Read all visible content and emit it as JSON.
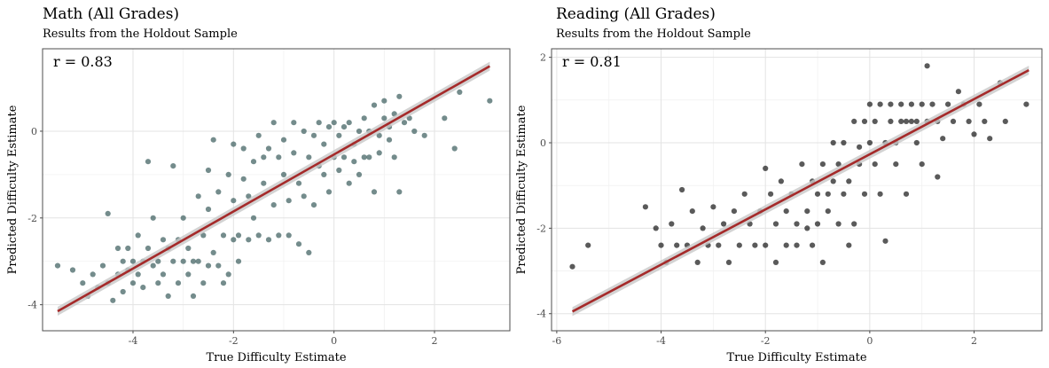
{
  "chart_data": [
    {
      "type": "scatter",
      "title": "Math (All Grades)",
      "subtitle": "Results from the Holdout Sample",
      "xlabel": "True Difficulty Estimate",
      "ylabel": "Predicted Difficulty Estimate",
      "annotation": "r = 0.83",
      "xlim": [
        -5.8,
        3.5
      ],
      "ylim": [
        -4.6,
        1.9
      ],
      "xticks": [
        -4,
        -2,
        0,
        2
      ],
      "yticks": [
        -4,
        -2,
        0
      ],
      "xtick_labels": [
        "-4",
        "-2",
        "0",
        "2"
      ],
      "ytick_labels": [
        "-4",
        "-2",
        "0"
      ],
      "grid": true,
      "point_color": "#3f5f5f",
      "fit_color": "#a52a2a",
      "band_color": "#c8c8c8",
      "fit_line": {
        "x": [
          -5.5,
          3.1
        ],
        "y": [
          -4.15,
          1.5
        ]
      },
      "points": [
        [
          -5.5,
          -3.1
        ],
        [
          -5.2,
          -3.2
        ],
        [
          -5.0,
          -3.5
        ],
        [
          -4.9,
          -3.8
        ],
        [
          -4.8,
          -3.3
        ],
        [
          -4.7,
          -3.6
        ],
        [
          -4.6,
          -3.1
        ],
        [
          -4.5,
          -1.9
        ],
        [
          -4.5,
          -3.5
        ],
        [
          -4.4,
          -3.9
        ],
        [
          -4.3,
          -3.3
        ],
        [
          -4.3,
          -2.7
        ],
        [
          -4.2,
          -3.0
        ],
        [
          -4.2,
          -3.7
        ],
        [
          -4.1,
          -3.2
        ],
        [
          -4.1,
          -2.7
        ],
        [
          -4.0,
          -3.5
        ],
        [
          -4.0,
          -3.0
        ],
        [
          -3.9,
          -2.4
        ],
        [
          -3.9,
          -3.3
        ],
        [
          -3.8,
          -3.0
        ],
        [
          -3.8,
          -3.6
        ],
        [
          -3.7,
          -0.7
        ],
        [
          -3.7,
          -2.7
        ],
        [
          -3.6,
          -3.1
        ],
        [
          -3.6,
          -2.0
        ],
        [
          -3.5,
          -3.5
        ],
        [
          -3.5,
          -3.0
        ],
        [
          -3.4,
          -2.5
        ],
        [
          -3.4,
          -3.3
        ],
        [
          -3.3,
          -3.8
        ],
        [
          -3.3,
          -2.7
        ],
        [
          -3.2,
          -3.0
        ],
        [
          -3.2,
          -0.8
        ],
        [
          -3.1,
          -2.5
        ],
        [
          -3.1,
          -3.5
        ],
        [
          -3.0,
          -3.0
        ],
        [
          -3.0,
          -2.0
        ],
        [
          -2.9,
          -3.3
        ],
        [
          -2.9,
          -2.7
        ],
        [
          -2.8,
          -3.0
        ],
        [
          -2.8,
          -3.8
        ],
        [
          -2.7,
          -1.5
        ],
        [
          -2.7,
          -3.0
        ],
        [
          -2.6,
          -2.4
        ],
        [
          -2.6,
          -3.5
        ],
        [
          -2.5,
          -0.9
        ],
        [
          -2.5,
          -3.1
        ],
        [
          -2.5,
          -1.8
        ],
        [
          -2.4,
          -2.8
        ],
        [
          -2.4,
          -0.2
        ],
        [
          -2.3,
          -3.1
        ],
        [
          -2.3,
          -1.4
        ],
        [
          -2.2,
          -3.5
        ],
        [
          -2.2,
          -2.4
        ],
        [
          -2.1,
          -1.0
        ],
        [
          -2.1,
          -3.3
        ],
        [
          -2.0,
          -0.3
        ],
        [
          -2.0,
          -2.5
        ],
        [
          -2.0,
          -1.6
        ],
        [
          -1.9,
          -3.0
        ],
        [
          -1.9,
          -2.4
        ],
        [
          -1.8,
          -1.1
        ],
        [
          -1.8,
          -0.4
        ],
        [
          -1.7,
          -2.5
        ],
        [
          -1.7,
          -1.5
        ],
        [
          -1.6,
          -0.7
        ],
        [
          -1.6,
          -2.0
        ],
        [
          -1.5,
          -0.1
        ],
        [
          -1.5,
          -2.4
        ],
        [
          -1.4,
          -0.6
        ],
        [
          -1.4,
          -1.2
        ],
        [
          -1.3,
          -2.5
        ],
        [
          -1.3,
          -0.4
        ],
        [
          -1.2,
          -1.7
        ],
        [
          -1.2,
          0.2
        ],
        [
          -1.1,
          -0.6
        ],
        [
          -1.1,
          -2.4
        ],
        [
          -1.0,
          -1.0
        ],
        [
          -1.0,
          -0.2
        ],
        [
          -0.9,
          -1.6
        ],
        [
          -0.9,
          -2.4
        ],
        [
          -0.8,
          0.2
        ],
        [
          -0.8,
          -0.5
        ],
        [
          -0.7,
          -1.2
        ],
        [
          -0.7,
          -2.6
        ],
        [
          -0.6,
          0.0
        ],
        [
          -0.6,
          -1.5
        ],
        [
          -0.5,
          -0.6
        ],
        [
          -0.5,
          -2.8
        ],
        [
          -0.4,
          -0.1
        ],
        [
          -0.4,
          -1.7
        ],
        [
          -0.3,
          -0.8
        ],
        [
          -0.3,
          0.2
        ],
        [
          -0.2,
          -1.0
        ],
        [
          -0.2,
          -0.3
        ],
        [
          -0.1,
          0.1
        ],
        [
          -0.1,
          -1.4
        ],
        [
          0.0,
          -0.6
        ],
        [
          0.0,
          0.2
        ],
        [
          0.1,
          -0.9
        ],
        [
          0.1,
          -0.1
        ],
        [
          0.2,
          0.1
        ],
        [
          0.2,
          -0.6
        ],
        [
          0.3,
          -1.2
        ],
        [
          0.3,
          0.2
        ],
        [
          0.4,
          -0.3
        ],
        [
          0.4,
          -0.7
        ],
        [
          0.5,
          0.0
        ],
        [
          0.5,
          -1.0
        ],
        [
          0.6,
          -0.6
        ],
        [
          0.6,
          0.3
        ],
        [
          0.7,
          0.0
        ],
        [
          0.7,
          -0.6
        ],
        [
          0.8,
          0.6
        ],
        [
          0.8,
          -1.4
        ],
        [
          0.9,
          -0.1
        ],
        [
          0.9,
          -0.5
        ],
        [
          1.0,
          0.3
        ],
        [
          1.0,
          0.7
        ],
        [
          1.1,
          -0.2
        ],
        [
          1.1,
          0.1
        ],
        [
          1.2,
          0.4
        ],
        [
          1.2,
          -0.6
        ],
        [
          1.3,
          0.8
        ],
        [
          1.3,
          -1.4
        ],
        [
          1.4,
          0.2
        ],
        [
          1.5,
          0.3
        ],
        [
          1.6,
          0.0
        ],
        [
          1.8,
          -0.1
        ],
        [
          2.2,
          0.3
        ],
        [
          2.4,
          -0.4
        ],
        [
          2.5,
          0.9
        ],
        [
          3.1,
          0.7
        ]
      ]
    },
    {
      "type": "scatter",
      "title": "Reading (All Grades)",
      "subtitle": "Results from the Holdout Sample",
      "xlabel": "True Difficulty Estimate",
      "ylabel": "Predicted Difficulty Estimate",
      "annotation": "r = 0.81",
      "xlim": [
        -6.1,
        3.3
      ],
      "ylim": [
        -4.4,
        2.2
      ],
      "xticks": [
        -6,
        -4,
        -2,
        0,
        2
      ],
      "yticks": [
        -4,
        -2,
        0,
        2
      ],
      "xtick_labels": [
        "-6",
        "-4",
        "-2",
        "0",
        "2"
      ],
      "ytick_labels": [
        "-4",
        "-2",
        "0",
        "2"
      ],
      "grid": true,
      "point_color": "#1a1a1a",
      "fit_color": "#a52a2a",
      "band_color": "#c8c8c8",
      "fit_line": {
        "x": [
          -5.7,
          3.05
        ],
        "y": [
          -3.95,
          1.7
        ]
      },
      "points": [
        [
          -5.7,
          -2.9
        ],
        [
          -5.4,
          -2.4
        ],
        [
          -4.3,
          -1.5
        ],
        [
          -4.1,
          -2.0
        ],
        [
          -4.0,
          -2.4
        ],
        [
          -3.9,
          -2.8
        ],
        [
          -3.8,
          -1.9
        ],
        [
          -3.7,
          -2.4
        ],
        [
          -3.6,
          -1.1
        ],
        [
          -3.5,
          -2.4
        ],
        [
          -3.4,
          -1.6
        ],
        [
          -3.3,
          -2.8
        ],
        [
          -3.2,
          -2.0
        ],
        [
          -3.1,
          -2.4
        ],
        [
          -3.0,
          -1.5
        ],
        [
          -2.9,
          -2.4
        ],
        [
          -2.8,
          -1.9
        ],
        [
          -2.7,
          -2.8
        ],
        [
          -2.6,
          -1.6
        ],
        [
          -2.5,
          -2.4
        ],
        [
          -2.4,
          -1.2
        ],
        [
          -2.3,
          -1.9
        ],
        [
          -2.2,
          -2.4
        ],
        [
          -2.1,
          -1.6
        ],
        [
          -2.0,
          -0.6
        ],
        [
          -2.0,
          -2.4
        ],
        [
          -1.9,
          -1.2
        ],
        [
          -1.8,
          -1.9
        ],
        [
          -1.8,
          -2.8
        ],
        [
          -1.7,
          -0.9
        ],
        [
          -1.6,
          -1.6
        ],
        [
          -1.6,
          -2.4
        ],
        [
          -1.5,
          -1.2
        ],
        [
          -1.4,
          -1.9
        ],
        [
          -1.4,
          -2.4
        ],
        [
          -1.3,
          -0.5
        ],
        [
          -1.2,
          -1.6
        ],
        [
          -1.2,
          -2.0
        ],
        [
          -1.1,
          -0.9
        ],
        [
          -1.1,
          -2.4
        ],
        [
          -1.0,
          -1.2
        ],
        [
          -1.0,
          -1.9
        ],
        [
          -0.9,
          -0.5
        ],
        [
          -0.9,
          -2.8
        ],
        [
          -0.8,
          -1.2
        ],
        [
          -0.8,
          -1.6
        ],
        [
          -0.7,
          0.0
        ],
        [
          -0.7,
          -0.9
        ],
        [
          -0.6,
          -1.9
        ],
        [
          -0.6,
          -0.5
        ],
        [
          -0.5,
          0.0
        ],
        [
          -0.5,
          -1.2
        ],
        [
          -0.4,
          -2.4
        ],
        [
          -0.4,
          -0.9
        ],
        [
          -0.3,
          0.5
        ],
        [
          -0.3,
          -1.9
        ],
        [
          -0.2,
          -0.5
        ],
        [
          -0.2,
          -0.1
        ],
        [
          -0.1,
          0.5
        ],
        [
          -0.1,
          -1.2
        ],
        [
          0.0,
          0.9
        ],
        [
          0.0,
          0.0
        ],
        [
          0.1,
          -0.5
        ],
        [
          0.1,
          0.5
        ],
        [
          0.2,
          0.9
        ],
        [
          0.2,
          -1.2
        ],
        [
          0.3,
          -2.3
        ],
        [
          0.3,
          0.0
        ],
        [
          0.4,
          0.5
        ],
        [
          0.4,
          0.9
        ],
        [
          0.5,
          0.0
        ],
        [
          0.5,
          -0.5
        ],
        [
          0.6,
          0.5
        ],
        [
          0.6,
          0.9
        ],
        [
          0.7,
          0.5
        ],
        [
          0.7,
          -1.2
        ],
        [
          0.8,
          0.9
        ],
        [
          0.8,
          0.5
        ],
        [
          0.9,
          0.0
        ],
        [
          0.9,
          0.5
        ],
        [
          1.0,
          0.9
        ],
        [
          1.0,
          -0.5
        ],
        [
          1.1,
          1.8
        ],
        [
          1.1,
          0.5
        ],
        [
          1.2,
          0.9
        ],
        [
          1.3,
          -0.8
        ],
        [
          1.3,
          0.5
        ],
        [
          1.4,
          0.1
        ],
        [
          1.5,
          0.9
        ],
        [
          1.6,
          0.5
        ],
        [
          1.7,
          1.2
        ],
        [
          1.8,
          0.9
        ],
        [
          1.9,
          0.5
        ],
        [
          2.0,
          0.2
        ],
        [
          2.1,
          0.9
        ],
        [
          2.2,
          0.5
        ],
        [
          2.3,
          0.1
        ],
        [
          2.5,
          1.4
        ],
        [
          2.6,
          0.5
        ],
        [
          3.0,
          0.9
        ]
      ]
    }
  ]
}
